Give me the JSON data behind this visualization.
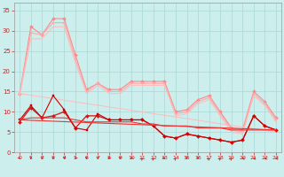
{
  "bg_color": "#cceeed",
  "grid_color": "#aad8d6",
  "x_ticks": [
    0,
    1,
    2,
    3,
    4,
    5,
    6,
    7,
    8,
    9,
    10,
    11,
    12,
    13,
    14,
    15,
    16,
    17,
    18,
    19,
    20,
    21,
    22,
    23
  ],
  "y_ticks": [
    0,
    5,
    10,
    15,
    20,
    25,
    30,
    35
  ],
  "xlim": [
    -0.5,
    23.5
  ],
  "ylim": [
    0,
    37
  ],
  "series": [
    {
      "x": [
        0,
        1,
        2,
        3,
        4,
        5,
        6,
        7,
        8,
        9,
        10,
        11,
        12,
        13,
        14,
        15,
        16,
        17,
        18,
        19,
        20,
        21,
        22,
        23
      ],
      "y": [
        14.5,
        31,
        29,
        33,
        33,
        24,
        15.5,
        17,
        15.5,
        15.5,
        17.5,
        17.5,
        17.5,
        17.5,
        10,
        10.5,
        13,
        14,
        10,
        6,
        5.5,
        15,
        12.5,
        8.5
      ],
      "color": "#ff8888",
      "lw": 0.8,
      "marker": "D",
      "ms": 2.0
    },
    {
      "x": [
        0,
        1,
        2,
        3,
        4,
        5,
        6,
        7,
        8,
        9,
        10,
        11,
        12,
        13,
        14,
        15,
        16,
        17,
        18,
        19,
        20,
        21,
        22,
        23
      ],
      "y": [
        14.5,
        29.5,
        29,
        32,
        32,
        23,
        15,
        17,
        15,
        15,
        17,
        17,
        17,
        17,
        9.5,
        10,
        12.5,
        13.5,
        9.5,
        5.5,
        5,
        14.5,
        12,
        8
      ],
      "color": "#ffaaaa",
      "lw": 0.8,
      "marker": "s",
      "ms": 1.5
    },
    {
      "x": [
        0,
        1,
        2,
        3,
        4,
        5,
        6,
        7,
        8,
        9,
        10,
        11,
        12,
        13,
        14,
        15,
        16,
        17,
        18,
        19,
        20,
        21,
        22,
        23
      ],
      "y": [
        14,
        28,
        28,
        31,
        31,
        22,
        14.5,
        16.5,
        14.5,
        14.5,
        16.5,
        16.5,
        16.5,
        16.5,
        9,
        9.5,
        12,
        13,
        9,
        5,
        4.5,
        14,
        11.5,
        7.5
      ],
      "color": "#ffbbbb",
      "lw": 0.7,
      "marker": null,
      "ms": 0
    },
    {
      "x": [
        0,
        23
      ],
      "y": [
        14.5,
        5.0
      ],
      "color": "#ffbbbb",
      "lw": 0.7,
      "marker": null,
      "ms": 0
    },
    {
      "x": [
        0,
        1,
        2,
        3,
        4,
        5,
        6,
        7,
        8,
        9,
        10,
        11,
        12,
        13,
        14,
        15,
        16,
        17,
        18,
        19,
        20,
        21,
        22,
        23
      ],
      "y": [
        7.5,
        11,
        8.5,
        9,
        10,
        6,
        9,
        9,
        8,
        8,
        8,
        8,
        6.5,
        4,
        3.5,
        4.5,
        4,
        3.5,
        3,
        2.5,
        3,
        9,
        6.5,
        5.5
      ],
      "color": "#dd1111",
      "lw": 0.9,
      "marker": "D",
      "ms": 2.0
    },
    {
      "x": [
        0,
        1,
        2,
        3,
        4,
        5,
        6,
        7,
        8,
        9,
        10,
        11,
        12,
        13,
        14,
        15,
        16,
        17,
        18,
        19,
        20,
        21,
        22,
        23
      ],
      "y": [
        8,
        11.5,
        8.5,
        14,
        10.5,
        6,
        5.5,
        9.5,
        8,
        8,
        8,
        8,
        6.5,
        4,
        3.5,
        4.5,
        4,
        3.5,
        3,
        2.5,
        3,
        9,
        6.5,
        5.5
      ],
      "color": "#cc0000",
      "lw": 0.8,
      "marker": "s",
      "ms": 1.5
    },
    {
      "x": [
        0,
        1,
        2,
        3,
        4,
        5,
        6,
        7,
        8,
        9,
        10,
        11,
        12,
        13,
        14,
        15,
        16,
        17,
        18,
        19,
        20,
        21,
        22,
        23
      ],
      "y": [
        8,
        8.5,
        8.5,
        8.5,
        8.5,
        8,
        7.5,
        7.5,
        7.5,
        7.5,
        7.5,
        7,
        7,
        6.5,
        6.5,
        6.5,
        6,
        6,
        6,
        5.5,
        5.5,
        5.5,
        5.5,
        5.5
      ],
      "color": "#ee3333",
      "lw": 0.8,
      "marker": null,
      "ms": 0
    },
    {
      "x": [
        0,
        23
      ],
      "y": [
        8.0,
        5.5
      ],
      "color": "#ee3333",
      "lw": 0.8,
      "marker": null,
      "ms": 0
    }
  ],
  "wind_arrows": {
    "x": [
      0,
      1,
      2,
      3,
      4,
      5,
      6,
      7,
      8,
      9,
      10,
      11,
      12,
      13,
      14,
      15,
      16,
      17,
      18,
      19,
      20,
      21,
      22,
      23
    ],
    "angles_deg": [
      45,
      0,
      0,
      0,
      0,
      315,
      0,
      0,
      315,
      0,
      315,
      135,
      135,
      45,
      135,
      0,
      0,
      135,
      135,
      135,
      270,
      270,
      270,
      270
    ],
    "color": "#dd2222"
  }
}
